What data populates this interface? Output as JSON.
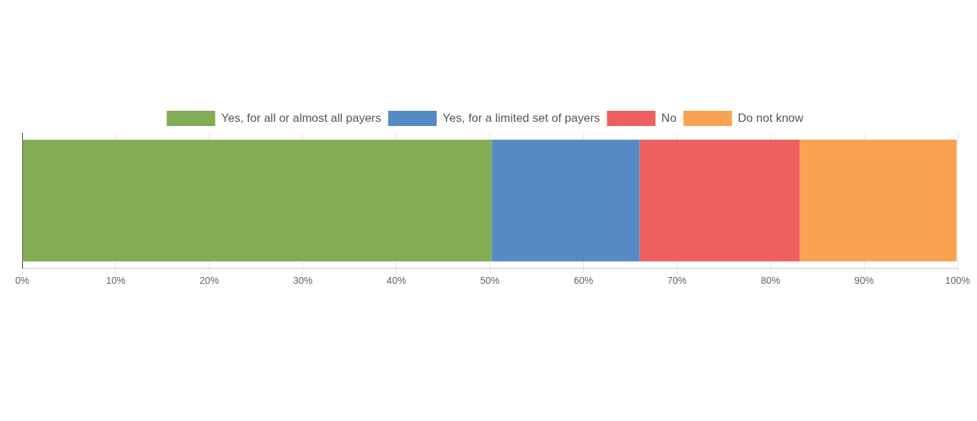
{
  "chart_data": {
    "type": "bar",
    "orientation": "horizontal",
    "stacked": true,
    "categories": [
      null
    ],
    "series": [
      {
        "name": "Yes, for all or almost all payers",
        "color": "#82ad55",
        "values": [
          50.2
        ]
      },
      {
        "name": "Yes, for a limited set of payers",
        "color": "#558bc4",
        "values": [
          15.8
        ]
      },
      {
        "name": "No",
        "color": "#ef5f5f",
        "values": [
          17.1
        ]
      },
      {
        "name": "Do not know",
        "color": "#f9a252",
        "values": [
          16.8
        ]
      }
    ],
    "xlim": [
      0,
      100
    ],
    "xticks": [
      {
        "value": 0,
        "label": "0%"
      },
      {
        "value": 10,
        "label": "10%"
      },
      {
        "value": 20,
        "label": "20%"
      },
      {
        "value": 30,
        "label": "30%"
      },
      {
        "value": 40,
        "label": "40%"
      },
      {
        "value": 50,
        "label": "50%"
      },
      {
        "value": 60,
        "label": "60%"
      },
      {
        "value": 70,
        "label": "70%"
      },
      {
        "value": 80,
        "label": "80%"
      },
      {
        "value": 90,
        "label": "90%"
      },
      {
        "value": 100,
        "label": "100%"
      }
    ],
    "grid": true,
    "legend": "top"
  }
}
